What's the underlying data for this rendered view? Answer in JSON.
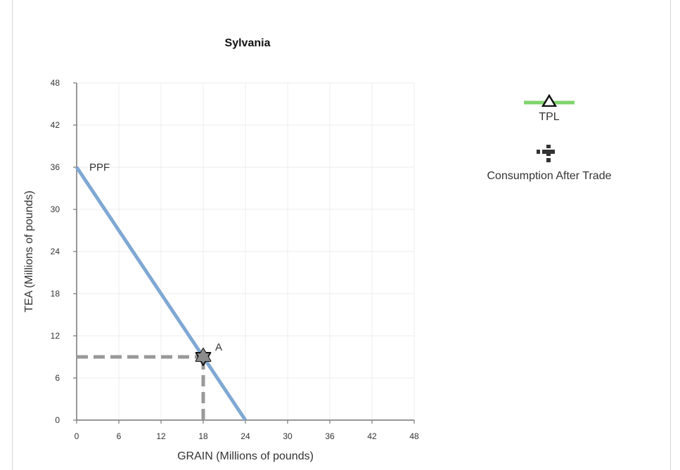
{
  "chart_data": {
    "type": "line",
    "title": "Sylvania",
    "xlabel": "GRAIN (Millions of pounds)",
    "ylabel": "TEA (Millions of pounds)",
    "xlim": [
      0,
      48
    ],
    "ylim": [
      0,
      48
    ],
    "xticks": [
      0,
      6,
      12,
      18,
      24,
      30,
      36,
      42,
      48
    ],
    "yticks": [
      0,
      6,
      12,
      18,
      24,
      30,
      36,
      42,
      48
    ],
    "grid": true,
    "series": [
      {
        "name": "PPF",
        "points": [
          [
            0,
            36
          ],
          [
            24,
            0
          ]
        ],
        "color": "#7fa8d3"
      }
    ],
    "points": [
      {
        "name": "A",
        "x": 18,
        "y": 9
      }
    ],
    "annotations": [
      {
        "text": "PPF",
        "x": 0,
        "y": 36
      },
      {
        "text": "A",
        "x": 18,
        "y": 9
      }
    ],
    "guides": [
      {
        "from": [
          0,
          9
        ],
        "to": [
          18,
          9
        ]
      },
      {
        "from": [
          18,
          0
        ],
        "to": [
          18,
          9
        ]
      }
    ],
    "legend": {
      "placement": "right",
      "items": [
        {
          "label": "TPL",
          "icon": "line-triangle-icon",
          "color": "#7fd36b"
        },
        {
          "label": "Consumption After Trade",
          "icon": "dashed-cross-icon",
          "color": "#333333"
        }
      ]
    }
  }
}
